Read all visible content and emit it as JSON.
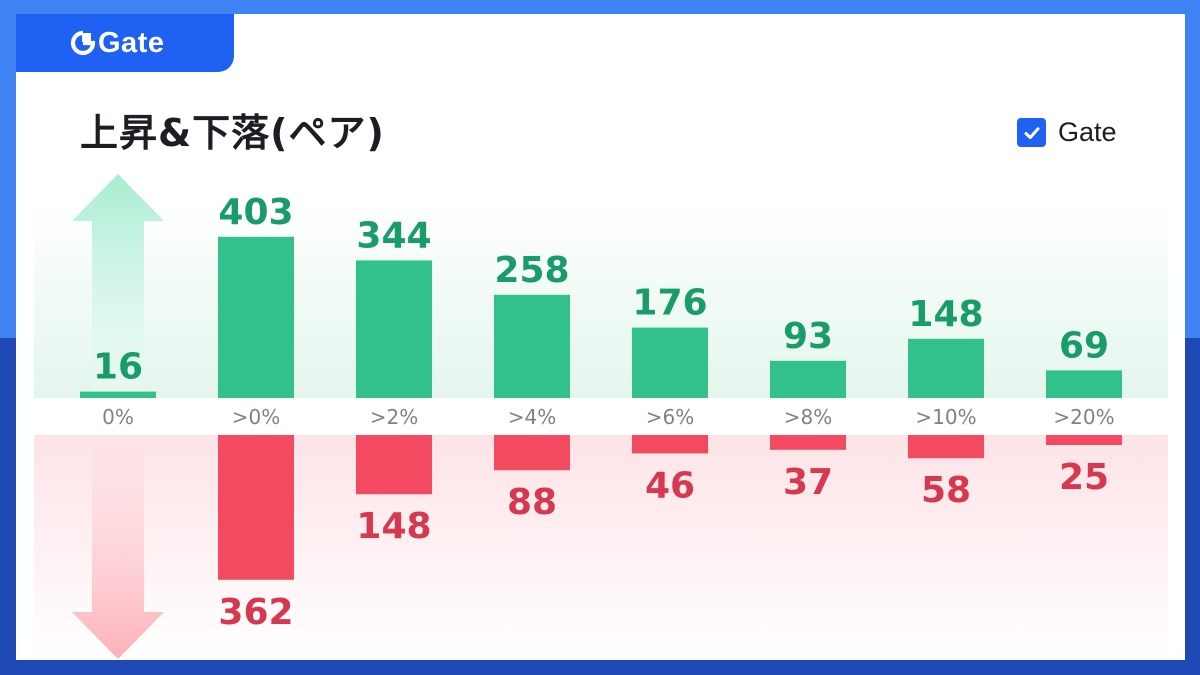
{
  "brand": {
    "name": "Gate",
    "logo_icon": "gate-logo-icon"
  },
  "title": "上昇&下落(ペア)",
  "legend": {
    "label": "Gate",
    "checked": true,
    "icon": "checkmark-icon"
  },
  "colors": {
    "frame_top": "#3f82f2",
    "frame_bottom": "#1e48b3",
    "brand_blue": "#1f61f2",
    "rise_bar": "#32c18b",
    "rise_label": "#1a9c6a",
    "fall_bar": "#f34a62",
    "fall_label": "#d6384f",
    "tick_label": "#7c828c"
  },
  "icons": {
    "up_arrow": "up-arrow-icon",
    "down_arrow": "down-arrow-icon"
  },
  "chart_data": {
    "type": "bar",
    "categories": [
      "0%",
      ">0%",
      ">2%",
      ">4%",
      ">6%",
      ">8%",
      ">10%",
      ">20%"
    ],
    "series": [
      {
        "values": [
          16,
          403,
          344,
          258,
          176,
          93,
          148,
          69
        ]
      },
      {
        "values": [
          null,
          362,
          148,
          88,
          46,
          37,
          58,
          25
        ]
      }
    ],
    "title": "上昇&下落(ペア)",
    "xlabel": "",
    "ylabel": "",
    "grid": false,
    "legend": "top-right"
  }
}
